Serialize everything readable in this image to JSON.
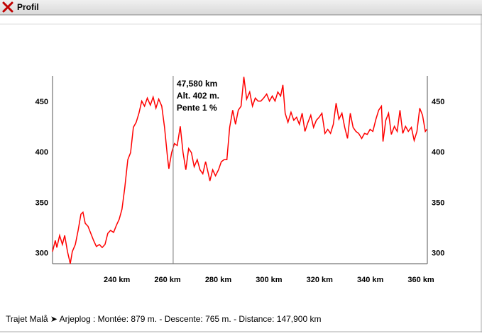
{
  "window": {
    "title": "Profil"
  },
  "chart_data": {
    "type": "line",
    "x": [
      214.6,
      215.7,
      216.3,
      217.4,
      218.5,
      219.4,
      220.5,
      221.6,
      222.4,
      223.6,
      224.7,
      225.8,
      226.6,
      227.5,
      228.6,
      229.7,
      230.8,
      231.9,
      233.1,
      234.2,
      235.3,
      236.4,
      237.5,
      238.7,
      239.8,
      240.9,
      242.0,
      243.1,
      244.3,
      245.4,
      246.5,
      247.6,
      248.7,
      249.8,
      250.9,
      252.0,
      253.2,
      254.3,
      255.4,
      256.5,
      257.7,
      258.8,
      259.9,
      260.5,
      261.6,
      262.7,
      263.8,
      265.0,
      266.1,
      267.2,
      268.3,
      269.4,
      270.5,
      271.7,
      272.8,
      273.9,
      275.0,
      276.1,
      276.7,
      277.8,
      278.9,
      280.1,
      281.2,
      282.3,
      283.4,
      284.5,
      285.7,
      286.8,
      287.9,
      289.0,
      290.1,
      291.2,
      292.4,
      293.5,
      294.6,
      295.7,
      296.8,
      297.9,
      299.1,
      300.2,
      301.3,
      302.4,
      303.5,
      304.6,
      305.5,
      306.4,
      307.5,
      308.7,
      309.8,
      310.9,
      312.0,
      313.1,
      314.2,
      315.4,
      316.5,
      317.6,
      318.7,
      319.8,
      320.9,
      322.1,
      323.2,
      324.3,
      325.4,
      326.5,
      327.6,
      328.8,
      329.9,
      331.0,
      332.1,
      333.2,
      334.3,
      335.4,
      336.6,
      337.7,
      338.8,
      339.9,
      341.0,
      342.2,
      343.3,
      344.4,
      345.0,
      346.1,
      347.2,
      348.3,
      349.5,
      350.6,
      351.7,
      352.8,
      353.9,
      355.0,
      356.2,
      357.3,
      358.4,
      359.5,
      360.6,
      361.7,
      362.3
    ],
    "values": [
      302,
      313,
      306,
      318,
      309,
      318,
      302,
      290,
      302,
      309,
      323,
      339,
      341,
      330,
      327,
      320,
      313,
      307,
      309,
      306,
      309,
      320,
      323,
      321,
      328,
      334,
      344,
      365,
      393,
      400,
      425,
      430,
      439,
      451,
      446,
      454,
      447,
      455,
      444,
      453,
      446,
      425,
      397,
      384,
      400,
      409,
      407,
      426,
      400,
      383,
      404,
      400,
      386,
      393,
      383,
      379,
      391,
      379,
      372,
      383,
      377,
      383,
      391,
      393,
      393,
      425,
      442,
      428,
      442,
      446,
      475,
      453,
      460,
      446,
      454,
      451,
      451,
      454,
      458,
      451,
      456,
      451,
      460,
      456,
      467,
      439,
      430,
      440,
      432,
      435,
      428,
      439,
      421,
      430,
      437,
      425,
      432,
      435,
      439,
      419,
      423,
      419,
      428,
      449,
      433,
      439,
      425,
      414,
      439,
      425,
      421,
      419,
      414,
      419,
      418,
      423,
      421,
      433,
      442,
      446,
      411,
      432,
      439,
      418,
      426,
      421,
      442,
      419,
      426,
      421,
      425,
      412,
      421,
      444,
      437,
      421,
      423
    ],
    "color": "#ff0000",
    "xlim": [
      214.6,
      362.5
    ],
    "ylim": [
      290,
      476
    ],
    "xticks": [
      {
        "value": 240,
        "label": "240 km"
      },
      {
        "value": 260,
        "label": "260 km"
      },
      {
        "value": 280,
        "label": "280 km"
      },
      {
        "value": 300,
        "label": "300 km"
      },
      {
        "value": 320,
        "label": "320 km"
      },
      {
        "value": 340,
        "label": "340 km"
      },
      {
        "value": 360,
        "label": "360 km"
      }
    ],
    "yticks": [
      300,
      350,
      400,
      450
    ],
    "cursor": {
      "x": 262.2,
      "labels": [
        "47,580 km",
        "Alt. 402 m.",
        "Pente 1 %"
      ]
    }
  },
  "footer": "Trajet Malå ➤ Arjeplog : Montée: 879 m. - Descente: 765 m. - Distance: 147,900 km"
}
